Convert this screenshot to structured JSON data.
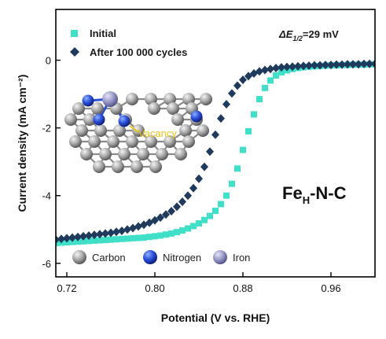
{
  "chart_data": {
    "type": "scatter",
    "xlabel": "Potential (V vs. RHE)",
    "ylabel": "Current density (mA cm⁻²)",
    "xlim": [
      0.71,
      1.0
    ],
    "ylim": [
      -6.4,
      1.5
    ],
    "x_ticks": [
      "0.72",
      "0.80",
      "0.88",
      "0.96"
    ],
    "y_ticks": [
      "-6",
      "-4",
      "-2",
      "0"
    ],
    "x_tick_values": [
      0.72,
      0.8,
      0.88,
      0.96
    ],
    "y_tick_values": [
      -6,
      -4,
      -2,
      0
    ],
    "annotation_delta": "ΔE",
    "annotation_sub": "1/2",
    "annotation_value": "=29 mV",
    "catalyst_main": "Fe",
    "catalyst_sub": "H",
    "catalyst_rest": "-N-C",
    "inset_vacancy_label": "Vacancy",
    "inset_legend": [
      {
        "label": "Carbon",
        "color": "#9a9a9a"
      },
      {
        "label": "Nitrogen",
        "color": "#2a4fd8"
      },
      {
        "label": "Iron",
        "color": "#9a9ac8"
      }
    ],
    "series": [
      {
        "name": "Initial",
        "marker": "square",
        "color": "#40e0c8",
        "x": [
          0.71,
          0.715,
          0.72,
          0.725,
          0.73,
          0.735,
          0.74,
          0.745,
          0.75,
          0.755,
          0.76,
          0.765,
          0.77,
          0.775,
          0.78,
          0.785,
          0.79,
          0.795,
          0.8,
          0.805,
          0.81,
          0.815,
          0.82,
          0.825,
          0.83,
          0.835,
          0.84,
          0.845,
          0.85,
          0.855,
          0.86,
          0.865,
          0.87,
          0.875,
          0.88,
          0.885,
          0.89,
          0.895,
          0.9,
          0.905,
          0.91,
          0.915,
          0.92,
          0.925,
          0.93,
          0.935,
          0.94,
          0.945,
          0.95,
          0.955,
          0.96,
          0.965,
          0.97,
          0.975,
          0.98,
          0.985,
          0.99,
          0.995,
          1.0
        ],
        "y": [
          -5.4,
          -5.39,
          -5.38,
          -5.37,
          -5.36,
          -5.35,
          -5.34,
          -5.33,
          -5.32,
          -5.31,
          -5.3,
          -5.29,
          -5.28,
          -5.27,
          -5.26,
          -5.25,
          -5.24,
          -5.22,
          -5.2,
          -5.18,
          -5.15,
          -5.12,
          -5.08,
          -5.03,
          -4.97,
          -4.9,
          -4.82,
          -4.72,
          -4.6,
          -4.45,
          -4.25,
          -4.0,
          -3.65,
          -3.2,
          -2.65,
          -2.1,
          -1.6,
          -1.15,
          -0.82,
          -0.6,
          -0.45,
          -0.36,
          -0.3,
          -0.26,
          -0.23,
          -0.21,
          -0.19,
          -0.18,
          -0.17,
          -0.16,
          -0.15,
          -0.15,
          -0.14,
          -0.14,
          -0.13,
          -0.13,
          -0.13,
          -0.12,
          -0.12
        ]
      },
      {
        "name": "After 100 000 cycles",
        "marker": "diamond",
        "color": "#1f3a5c",
        "x": [
          0.71,
          0.715,
          0.72,
          0.725,
          0.73,
          0.735,
          0.74,
          0.745,
          0.75,
          0.755,
          0.76,
          0.765,
          0.77,
          0.775,
          0.78,
          0.785,
          0.79,
          0.795,
          0.8,
          0.805,
          0.81,
          0.815,
          0.82,
          0.825,
          0.83,
          0.835,
          0.84,
          0.845,
          0.85,
          0.855,
          0.86,
          0.865,
          0.87,
          0.875,
          0.88,
          0.885,
          0.89,
          0.895,
          0.9,
          0.905,
          0.91,
          0.915,
          0.92,
          0.925,
          0.93,
          0.935,
          0.94,
          0.945,
          0.95,
          0.955,
          0.96,
          0.965,
          0.97,
          0.975,
          0.98,
          0.985,
          0.99,
          0.995,
          1.0
        ],
        "y": [
          -5.3,
          -5.28,
          -5.26,
          -5.24,
          -5.22,
          -5.2,
          -5.18,
          -5.16,
          -5.14,
          -5.12,
          -5.1,
          -5.07,
          -5.04,
          -5.0,
          -4.96,
          -4.91,
          -4.86,
          -4.8,
          -4.73,
          -4.65,
          -4.56,
          -4.46,
          -4.33,
          -4.18,
          -4.0,
          -3.78,
          -3.5,
          -3.15,
          -2.7,
          -2.2,
          -1.72,
          -1.3,
          -0.98,
          -0.75,
          -0.58,
          -0.47,
          -0.39,
          -0.33,
          -0.29,
          -0.26,
          -0.23,
          -0.21,
          -0.2,
          -0.19,
          -0.18,
          -0.17,
          -0.16,
          -0.15,
          -0.15,
          -0.14,
          -0.14,
          -0.13,
          -0.13,
          -0.12,
          -0.12,
          -0.12,
          -0.11,
          -0.11,
          -0.11
        ]
      }
    ]
  }
}
